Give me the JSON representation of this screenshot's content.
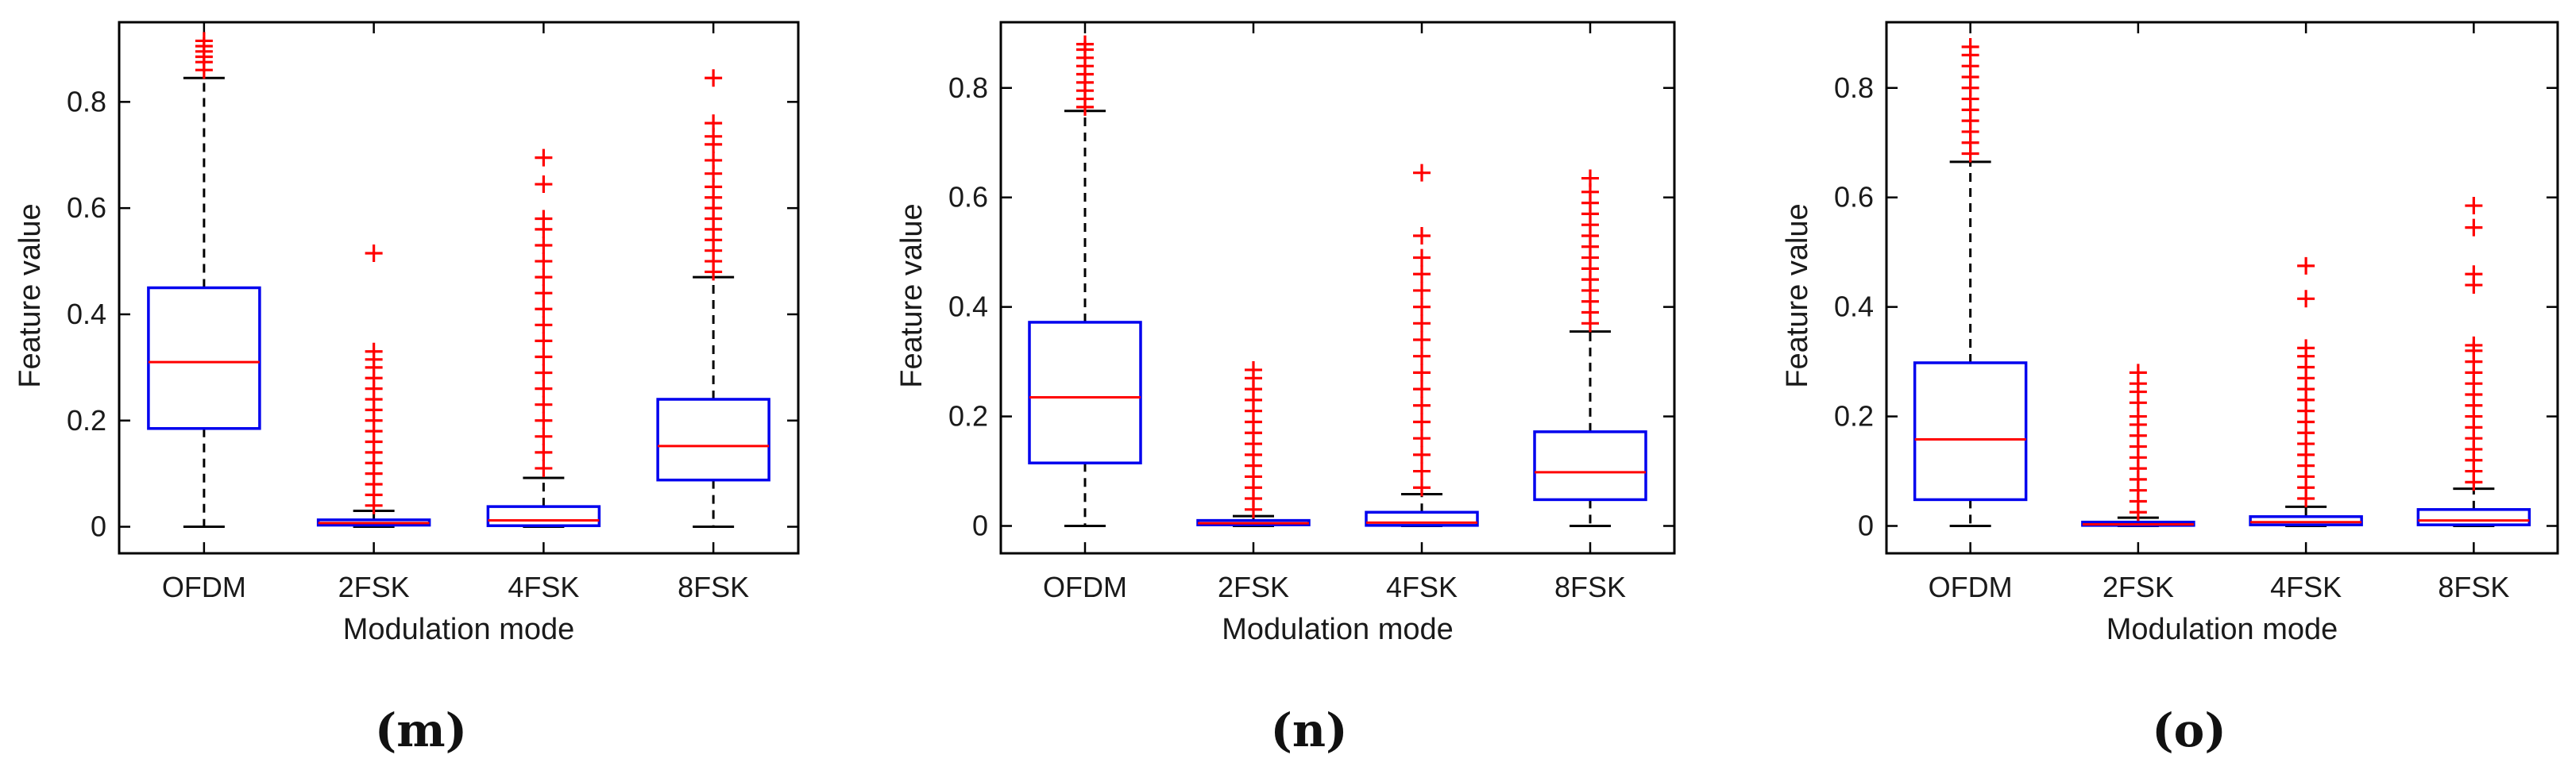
{
  "colors": {
    "box": "#0000ee",
    "median": "#ff0000",
    "outlier": "#ff0000",
    "whisker": "#000000",
    "axis": "#000000"
  },
  "chart_data": [
    {
      "type": "box",
      "panel_label": "(m)",
      "xlabel": "Modulation mode",
      "ylabel": "Feature value",
      "ylim": [
        -0.05,
        0.95
      ],
      "yticks": [
        0,
        0.2,
        0.4,
        0.6,
        0.8
      ],
      "ytick_labels": [
        "0",
        "0.2",
        "0.4",
        "0.6",
        "0.8"
      ],
      "categories": [
        "OFDM",
        "2FSK",
        "4FSK",
        "8FSK"
      ],
      "boxes": [
        {
          "category": "OFDM",
          "whisker_low": 0.0,
          "q1": 0.185,
          "median": 0.31,
          "q3": 0.45,
          "whisker_high": 0.845,
          "outliers": [
            0.86,
            0.875,
            0.885,
            0.895,
            0.905,
            0.915
          ]
        },
        {
          "category": "2FSK",
          "whisker_low": 0.0,
          "q1": 0.003,
          "median": 0.007,
          "q3": 0.013,
          "whisker_high": 0.03,
          "outliers": [
            0.04,
            0.06,
            0.08,
            0.1,
            0.12,
            0.14,
            0.16,
            0.18,
            0.2,
            0.22,
            0.24,
            0.26,
            0.28,
            0.3,
            0.315,
            0.33,
            0.515
          ]
        },
        {
          "category": "4FSK",
          "whisker_low": 0.0,
          "q1": 0.002,
          "median": 0.012,
          "q3": 0.038,
          "whisker_high": 0.092,
          "outliers": [
            0.11,
            0.14,
            0.17,
            0.2,
            0.23,
            0.26,
            0.29,
            0.32,
            0.35,
            0.38,
            0.41,
            0.44,
            0.47,
            0.5,
            0.53,
            0.56,
            0.58,
            0.645,
            0.695
          ]
        },
        {
          "category": "8FSK",
          "whisker_low": 0.0,
          "q1": 0.088,
          "median": 0.152,
          "q3": 0.24,
          "whisker_high": 0.47,
          "outliers": [
            0.48,
            0.5,
            0.52,
            0.54,
            0.56,
            0.58,
            0.6,
            0.62,
            0.64,
            0.665,
            0.69,
            0.72,
            0.735,
            0.76,
            0.845
          ]
        }
      ]
    },
    {
      "type": "box",
      "panel_label": "(n)",
      "xlabel": "Modulation mode",
      "ylabel": "Feature value",
      "ylim": [
        -0.05,
        0.92
      ],
      "yticks": [
        0,
        0.2,
        0.4,
        0.6,
        0.8
      ],
      "ytick_labels": [
        "0",
        "0.2",
        "0.4",
        "0.6",
        "0.8"
      ],
      "categories": [
        "OFDM",
        "2FSK",
        "4FSK",
        "8FSK"
      ],
      "boxes": [
        {
          "category": "OFDM",
          "whisker_low": 0.0,
          "q1": 0.115,
          "median": 0.235,
          "q3": 0.372,
          "whisker_high": 0.758,
          "outliers": [
            0.765,
            0.78,
            0.795,
            0.81,
            0.825,
            0.84,
            0.855,
            0.87,
            0.88
          ]
        },
        {
          "category": "2FSK",
          "whisker_low": 0.0,
          "q1": 0.002,
          "median": 0.005,
          "q3": 0.01,
          "whisker_high": 0.018,
          "outliers": [
            0.03,
            0.05,
            0.07,
            0.09,
            0.11,
            0.13,
            0.15,
            0.17,
            0.19,
            0.21,
            0.23,
            0.25,
            0.27,
            0.285
          ]
        },
        {
          "category": "4FSK",
          "whisker_low": 0.0,
          "q1": 0.001,
          "median": 0.006,
          "q3": 0.025,
          "whisker_high": 0.058,
          "outliers": [
            0.07,
            0.1,
            0.13,
            0.16,
            0.19,
            0.22,
            0.25,
            0.28,
            0.31,
            0.34,
            0.37,
            0.4,
            0.43,
            0.46,
            0.49,
            0.53,
            0.645
          ]
        },
        {
          "category": "8FSK",
          "whisker_low": 0.0,
          "q1": 0.048,
          "median": 0.098,
          "q3": 0.172,
          "whisker_high": 0.355,
          "outliers": [
            0.37,
            0.39,
            0.41,
            0.43,
            0.45,
            0.47,
            0.49,
            0.51,
            0.53,
            0.55,
            0.57,
            0.59,
            0.61,
            0.635
          ]
        }
      ]
    },
    {
      "type": "box",
      "panel_label": "(o)",
      "xlabel": "Modulation mode",
      "ylabel": "Feature value",
      "ylim": [
        -0.05,
        0.92
      ],
      "yticks": [
        0,
        0.2,
        0.4,
        0.6,
        0.8
      ],
      "ytick_labels": [
        "0",
        "0.2",
        "0.4",
        "0.6",
        "0.8"
      ],
      "categories": [
        "OFDM",
        "2FSK",
        "4FSK",
        "8FSK"
      ],
      "boxes": [
        {
          "category": "OFDM",
          "whisker_low": 0.0,
          "q1": 0.048,
          "median": 0.158,
          "q3": 0.298,
          "whisker_high": 0.665,
          "outliers": [
            0.68,
            0.7,
            0.72,
            0.74,
            0.76,
            0.78,
            0.8,
            0.82,
            0.84,
            0.86,
            0.875
          ]
        },
        {
          "category": "2FSK",
          "whisker_low": 0.0,
          "q1": 0.001,
          "median": 0.003,
          "q3": 0.007,
          "whisker_high": 0.015,
          "outliers": [
            0.025,
            0.045,
            0.065,
            0.085,
            0.105,
            0.125,
            0.145,
            0.165,
            0.185,
            0.2,
            0.225,
            0.245,
            0.26,
            0.28
          ]
        },
        {
          "category": "4FSK",
          "whisker_low": 0.0,
          "q1": 0.002,
          "median": 0.007,
          "q3": 0.017,
          "whisker_high": 0.035,
          "outliers": [
            0.05,
            0.07,
            0.09,
            0.11,
            0.13,
            0.15,
            0.17,
            0.19,
            0.21,
            0.23,
            0.25,
            0.27,
            0.29,
            0.31,
            0.325,
            0.415,
            0.475
          ]
        },
        {
          "category": "8FSK",
          "whisker_low": 0.0,
          "q1": 0.002,
          "median": 0.01,
          "q3": 0.03,
          "whisker_high": 0.068,
          "outliers": [
            0.08,
            0.1,
            0.12,
            0.14,
            0.16,
            0.18,
            0.2,
            0.22,
            0.24,
            0.26,
            0.28,
            0.3,
            0.32,
            0.33,
            0.44,
            0.46,
            0.545,
            0.585
          ]
        }
      ]
    }
  ]
}
